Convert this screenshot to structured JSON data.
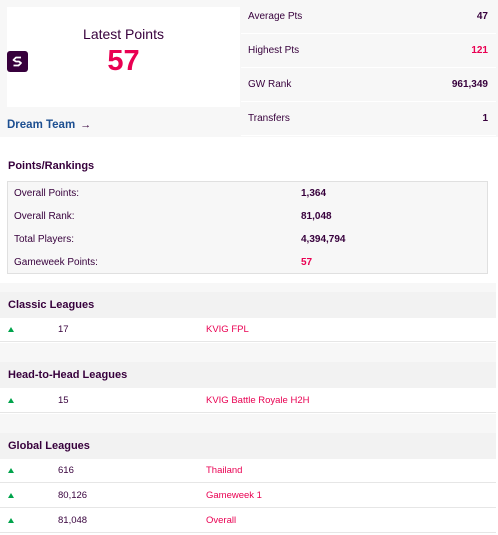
{
  "latest": {
    "title": "Latest Points",
    "value": "57"
  },
  "dream_team": {
    "label": "Dream Team",
    "arrow": "→"
  },
  "stats": [
    {
      "label": "Average Pts",
      "value": "47",
      "highlight": false
    },
    {
      "label": "Highest Pts",
      "value": "121",
      "highlight": true
    },
    {
      "label": "GW Rank",
      "value": "961,349",
      "highlight": false
    },
    {
      "label": "Transfers",
      "value": "1",
      "highlight": false
    }
  ],
  "points_rankings": {
    "title": "Points/Rankings",
    "rows": [
      {
        "label": "Overall Points:",
        "value": "1,364",
        "highlight": false
      },
      {
        "label": "Overall Rank:",
        "value": "81,048",
        "highlight": false
      },
      {
        "label": "Total Players:",
        "value": "4,394,794",
        "highlight": false
      },
      {
        "label": "Gameweek Points:",
        "value": "57",
        "highlight": true
      }
    ]
  },
  "classic_leagues": {
    "title": "Classic Leagues",
    "rows": [
      {
        "movement": "up",
        "rank": "17",
        "name": "KVIG FPL"
      }
    ]
  },
  "h2h_leagues": {
    "title": "Head-to-Head Leagues",
    "rows": [
      {
        "movement": "up",
        "rank": "15",
        "name": "KVIG Battle Royale H2H"
      }
    ]
  },
  "global_leagues": {
    "title": "Global Leagues",
    "rows": [
      {
        "movement": "up",
        "rank": "616",
        "name": "Thailand"
      },
      {
        "movement": "up",
        "rank": "80,126",
        "name": "Gameweek 1"
      },
      {
        "movement": "up",
        "rank": "81,048",
        "name": "Overall"
      }
    ]
  },
  "colors": {
    "primary": "#37003c",
    "accent": "#e90052",
    "up": "#00a34b",
    "link": "#1d4f91"
  }
}
